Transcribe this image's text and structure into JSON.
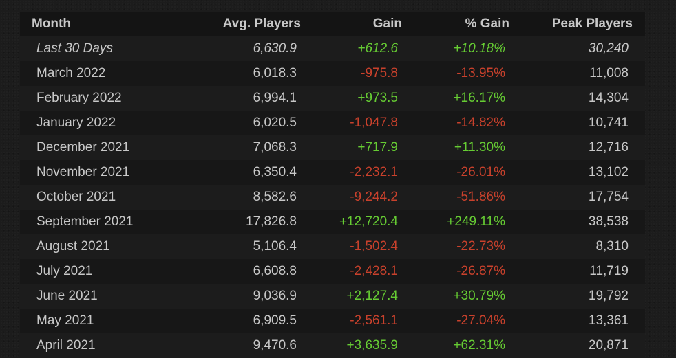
{
  "columns": {
    "month": "Month",
    "avg": "Avg. Players",
    "gain": "Gain",
    "pct": "% Gain",
    "peak": "Peak Players"
  },
  "colors": {
    "positive": "#66cc33",
    "negative": "#c9412c",
    "text": "#c8c8c8"
  },
  "rows": [
    {
      "month": "Last 30 Days",
      "avg": "6,630.9",
      "gain": "+612.6",
      "pct": "+10.18%",
      "peak": "30,240",
      "trend": "positive"
    },
    {
      "month": "March 2022",
      "avg": "6,018.3",
      "gain": "-975.8",
      "pct": "-13.95%",
      "peak": "11,008",
      "trend": "negative"
    },
    {
      "month": "February 2022",
      "avg": "6,994.1",
      "gain": "+973.5",
      "pct": "+16.17%",
      "peak": "14,304",
      "trend": "positive"
    },
    {
      "month": "January 2022",
      "avg": "6,020.5",
      "gain": "-1,047.8",
      "pct": "-14.82%",
      "peak": "10,741",
      "trend": "negative"
    },
    {
      "month": "December 2021",
      "avg": "7,068.3",
      "gain": "+717.9",
      "pct": "+11.30%",
      "peak": "12,716",
      "trend": "positive"
    },
    {
      "month": "November 2021",
      "avg": "6,350.4",
      "gain": "-2,232.1",
      "pct": "-26.01%",
      "peak": "13,102",
      "trend": "negative"
    },
    {
      "month": "October 2021",
      "avg": "8,582.6",
      "gain": "-9,244.2",
      "pct": "-51.86%",
      "peak": "17,754",
      "trend": "negative"
    },
    {
      "month": "September 2021",
      "avg": "17,826.8",
      "gain": "+12,720.4",
      "pct": "+249.11%",
      "peak": "38,538",
      "trend": "positive"
    },
    {
      "month": "August 2021",
      "avg": "5,106.4",
      "gain": "-1,502.4",
      "pct": "-22.73%",
      "peak": "8,310",
      "trend": "negative"
    },
    {
      "month": "July 2021",
      "avg": "6,608.8",
      "gain": "-2,428.1",
      "pct": "-26.87%",
      "peak": "11,719",
      "trend": "negative"
    },
    {
      "month": "June 2021",
      "avg": "9,036.9",
      "gain": "+2,127.4",
      "pct": "+30.79%",
      "peak": "19,792",
      "trend": "positive"
    },
    {
      "month": "May 2021",
      "avg": "6,909.5",
      "gain": "-2,561.1",
      "pct": "-27.04%",
      "peak": "13,361",
      "trend": "negative"
    },
    {
      "month": "April 2021",
      "avg": "9,470.6",
      "gain": "+3,635.9",
      "pct": "+62.31%",
      "peak": "20,871",
      "trend": "positive"
    }
  ]
}
